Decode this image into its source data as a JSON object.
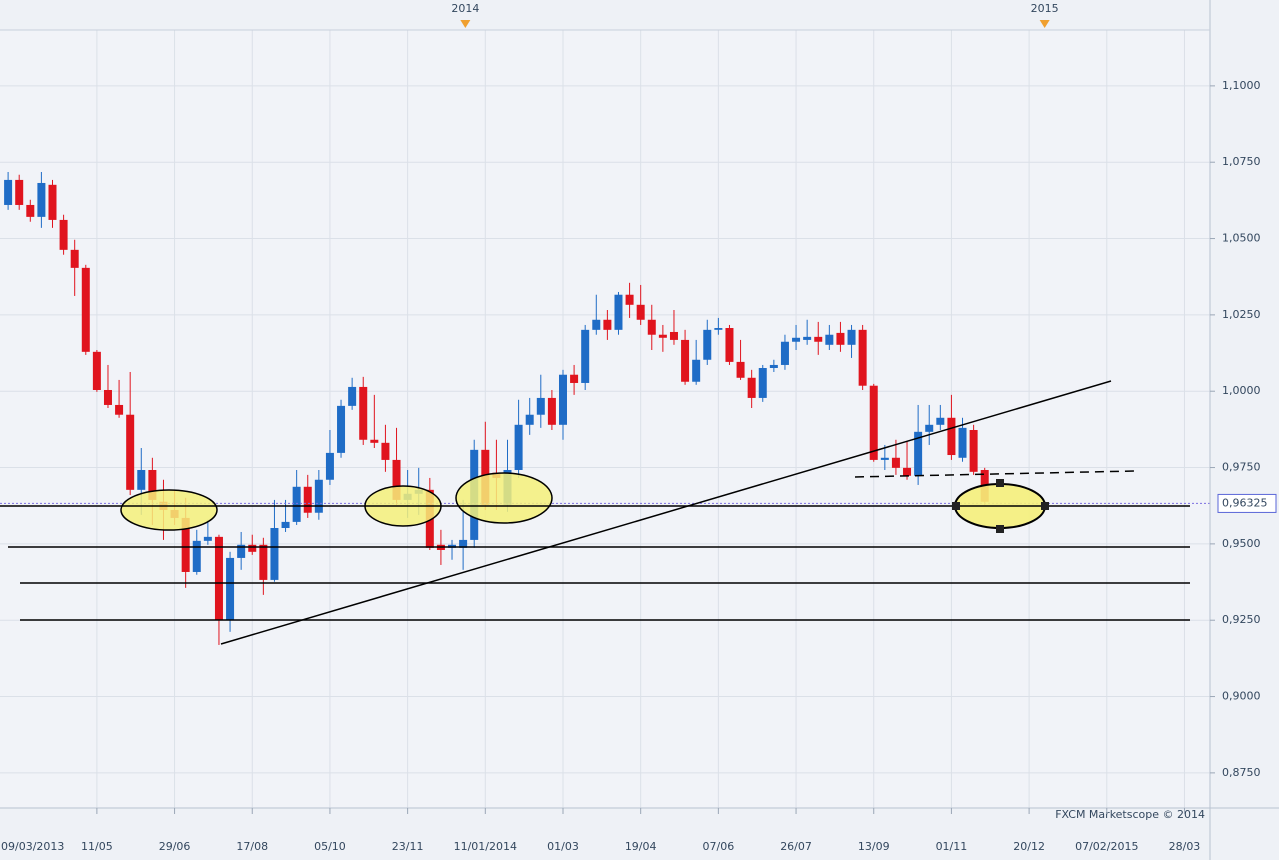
{
  "chart_data": {
    "type": "candlestick",
    "watermark": "FXCM Marketscope © 2014",
    "up_color": "#1f6cc6",
    "down_color": "#e0141e",
    "grid": true,
    "x": [
      1,
      2,
      3,
      4,
      5,
      6,
      7,
      8,
      9,
      10,
      11,
      12,
      13,
      14,
      15,
      16,
      17,
      18,
      19,
      20,
      21,
      22,
      23,
      24,
      25,
      26,
      27,
      28,
      29,
      30,
      31,
      32,
      33,
      34,
      35,
      36,
      37,
      38,
      39,
      40,
      41,
      42,
      43,
      44,
      45,
      46,
      47,
      48,
      49,
      50,
      51,
      52,
      53,
      54,
      55,
      56,
      57,
      58,
      59,
      60,
      61,
      62,
      63,
      64,
      65,
      66,
      67,
      68,
      69,
      70,
      71,
      72,
      73,
      74,
      75,
      76,
      77,
      78,
      79,
      80,
      81,
      82,
      83,
      84,
      85,
      86,
      87,
      88,
      89
    ],
    "open": [
      1.061,
      1.0692,
      1.061,
      1.0571,
      1.0676,
      1.0561,
      1.0463,
      1.0404,
      1.0129,
      1.0004,
      0.9955,
      0.9923,
      0.9677,
      0.9742,
      0.9638,
      0.9611,
      0.9585,
      0.9408,
      0.951,
      0.9523,
      0.9251,
      0.9454,
      0.9497,
      0.9497,
      0.9382,
      0.9552,
      0.9572,
      0.9687,
      0.9602,
      0.971,
      0.9798,
      0.9952,
      1.0014,
      0.9841,
      0.9831,
      0.9775,
      0.9644,
      0.9664,
      0.9677,
      0.9497,
      0.9487,
      0.9487,
      0.9513,
      0.9808,
      0.9733,
      0.9628,
      0.9742,
      0.989,
      0.9923,
      0.9978,
      0.989,
      1.0054,
      1.0027,
      1.0201,
      1.0234,
      1.0201,
      1.0316,
      1.0283,
      1.0234,
      1.0185,
      1.0194,
      1.0168,
      1.0031,
      1.0103,
      1.0201,
      1.0207,
      1.0096,
      1.0044,
      0.9978,
      1.0076,
      1.0086,
      1.0162,
      1.0168,
      1.0178,
      1.0152,
      1.0191,
      1.0152,
      1.0201,
      1.0018,
      0.9775,
      0.9782,
      0.9749,
      0.9723,
      0.9867,
      0.989,
      0.9913,
      0.9782,
      0.9873,
      0.9742
    ],
    "high": [
      1.0718,
      1.0709,
      1.0627,
      1.0718,
      1.0692,
      1.0578,
      1.0496,
      1.0414,
      1.0135,
      1.0086,
      1.0037,
      1.0063,
      0.9814,
      0.9782,
      0.971,
      0.9677,
      0.9651,
      0.9546,
      0.9579,
      0.953,
      0.9474,
      0.9539,
      0.953,
      0.952,
      0.9644,
      0.9644,
      0.9742,
      0.9726,
      0.9742,
      0.9873,
      0.9972,
      1.0044,
      1.0047,
      0.9988,
      0.989,
      0.988,
      0.9742,
      0.9749,
      0.9716,
      0.9546,
      0.9513,
      0.9644,
      0.9841,
      0.99,
      0.9841,
      0.9841,
      0.9972,
      0.9978,
      1.0054,
      1.0004,
      1.007,
      1.0086,
      1.0217,
      1.0316,
      1.0266,
      1.0325,
      1.0355,
      1.0348,
      1.0283,
      1.0217,
      1.0266,
      1.0201,
      1.0168,
      1.0234,
      1.024,
      1.0217,
      1.0168,
      1.007,
      1.0086,
      1.0103,
      1.0185,
      1.0217,
      1.0234,
      1.0227,
      1.0217,
      1.0227,
      1.0217,
      1.0217,
      1.0024,
      0.9824,
      0.9841,
      0.9834,
      0.9955,
      0.9955,
      0.9955,
      0.9988,
      0.9913,
      0.989,
      0.9749
    ],
    "low": [
      1.0594,
      1.0594,
      1.0555,
      1.0535,
      1.0535,
      1.0447,
      1.0312,
      1.0119,
      0.9998,
      0.9945,
      0.9913,
      0.966,
      0.9595,
      0.9562,
      0.9513,
      0.9562,
      0.9356,
      0.9399,
      0.9497,
      0.9169,
      0.9212,
      0.9415,
      0.9464,
      0.9333,
      0.9376,
      0.9539,
      0.9562,
      0.9585,
      0.9579,
      0.9693,
      0.9782,
      0.9939,
      0.9824,
      0.9814,
      0.9736,
      0.9628,
      0.9585,
      0.9595,
      0.948,
      0.9431,
      0.9448,
      0.9415,
      0.9487,
      0.9611,
      0.9611,
      0.9605,
      0.9716,
      0.9857,
      0.988,
      0.9873,
      0.9841,
      0.9988,
      1.0004,
      1.0185,
      1.0168,
      1.0185,
      1.024,
      1.0217,
      1.0135,
      1.0129,
      1.0152,
      1.0021,
      1.0021,
      1.0086,
      1.0185,
      1.0086,
      1.0037,
      0.9945,
      0.9965,
      1.0063,
      1.007,
      1.0135,
      1.0152,
      1.0119,
      1.0135,
      1.0129,
      1.0109,
      1.0004,
      0.9769,
      0.9742,
      0.9726,
      0.971,
      0.9693,
      0.9824,
      0.9873,
      0.9775,
      0.9769,
      0.9726,
      0.9628
    ],
    "close": [
      1.0692,
      1.061,
      1.0571,
      1.0682,
      1.0561,
      1.0463,
      1.0404,
      1.0129,
      1.0004,
      0.9955,
      0.9923,
      0.9677,
      0.9742,
      0.9644,
      0.9611,
      0.9585,
      0.9408,
      0.951,
      0.9523,
      0.9251,
      0.9454,
      0.9497,
      0.9474,
      0.9382,
      0.9552,
      0.9572,
      0.9687,
      0.9602,
      0.971,
      0.9798,
      0.9952,
      1.0014,
      0.9841,
      0.9831,
      0.9775,
      0.9644,
      0.9664,
      0.9677,
      0.9487,
      0.948,
      0.9497,
      0.9513,
      0.9808,
      0.9628,
      0.9716,
      0.9742,
      0.989,
      0.9923,
      0.9978,
      0.989,
      1.0054,
      1.0027,
      1.0201,
      1.0234,
      1.0201,
      1.0316,
      1.0283,
      1.0234,
      1.0185,
      1.0175,
      1.0168,
      1.0031,
      1.0103,
      1.0201,
      1.0207,
      1.0096,
      1.0044,
      0.9978,
      1.0076,
      1.0086,
      1.0162,
      1.0175,
      1.0178,
      1.0162,
      1.0185,
      1.0152,
      1.0201,
      1.0018,
      0.9775,
      0.9782,
      0.9749,
      0.9723,
      0.9867,
      0.989,
      0.9913,
      0.9791,
      0.988,
      0.9736,
      0.9638
    ],
    "xlim": [
      0.27,
      109.3
    ],
    "xticks": [
      {
        "value": 0,
        "label": "09/03/2013"
      },
      {
        "value": 9,
        "label": "11/05"
      },
      {
        "value": 16,
        "label": "29/06"
      },
      {
        "value": 23,
        "label": "17/08"
      },
      {
        "value": 30,
        "label": "05/10"
      },
      {
        "value": 37,
        "label": "23/11"
      },
      {
        "value": 44,
        "label": "11/01/2014"
      },
      {
        "value": 51,
        "label": "01/03"
      },
      {
        "value": 58,
        "label": "19/04"
      },
      {
        "value": 65,
        "label": "07/06"
      },
      {
        "value": 72,
        "label": "26/07"
      },
      {
        "value": 79,
        "label": "13/09"
      },
      {
        "value": 86,
        "label": "01/11"
      },
      {
        "value": 93,
        "label": "20/12"
      },
      {
        "value": 100,
        "label": "07/02/2015"
      },
      {
        "value": 107,
        "label": "28/03"
      }
    ],
    "year_markers": [
      {
        "value": 42.2,
        "label": "2014"
      },
      {
        "value": 94.4,
        "label": "2015"
      }
    ],
    "ylim": [
      0.8635,
      1.1183
    ],
    "yticks": [
      {
        "value": 1.1,
        "label": "1,1000"
      },
      {
        "value": 1.075,
        "label": "1,0750"
      },
      {
        "value": 1.05,
        "label": "1,0500"
      },
      {
        "value": 1.025,
        "label": "1,0250"
      },
      {
        "value": 1.0,
        "label": "1,0000"
      },
      {
        "value": 0.975,
        "label": "0,9750"
      },
      {
        "value": 0.95,
        "label": "0,9500"
      },
      {
        "value": 0.925,
        "label": "0,9250"
      },
      {
        "value": 0.9,
        "label": "0,9000"
      },
      {
        "value": 0.875,
        "label": "0,8750"
      }
    ],
    "last_price": {
      "value": 0.96325,
      "label": "0,96325"
    }
  }
}
